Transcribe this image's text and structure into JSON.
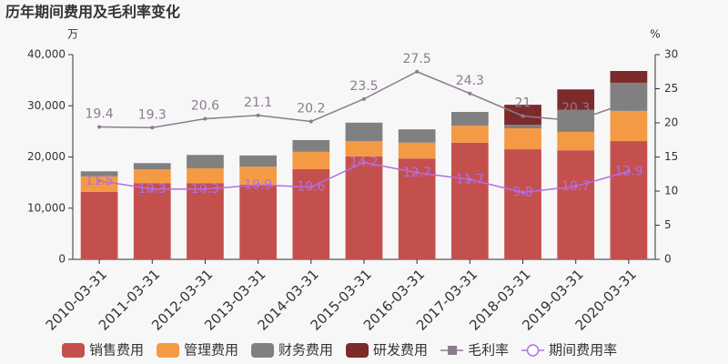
{
  "chart_data": {
    "type": "bar",
    "title": "历年期间费用及毛利率变化",
    "y_unit": "万",
    "y2_unit": "%",
    "categories": [
      "2010-03-31",
      "2011-03-31",
      "2012-03-31",
      "2013-03-31",
      "2014-03-31",
      "2015-03-31",
      "2016-03-31",
      "2017-03-31",
      "2018-03-31",
      "2019-03-31",
      "2020-03-31"
    ],
    "series": [
      {
        "name": "销售费用",
        "color": "#c4504e",
        "values": [
          13200,
          14900,
          14900,
          14600,
          17600,
          20100,
          19700,
          22800,
          21500,
          21300,
          23100
        ]
      },
      {
        "name": "管理费用",
        "color": "#f59a44",
        "values": [
          3000,
          2700,
          2900,
          3500,
          3400,
          3000,
          3100,
          3300,
          4100,
          3600,
          5900
        ]
      },
      {
        "name": "财务费用",
        "color": "#808080",
        "values": [
          1000,
          1200,
          2600,
          2200,
          2300,
          3600,
          2600,
          2700,
          700,
          4300,
          5500
        ]
      },
      {
        "name": "研发费用",
        "color": "#7d2a2a",
        "values": [
          0,
          0,
          0,
          0,
          0,
          0,
          0,
          0,
          3900,
          4000,
          2300
        ]
      },
      {
        "name": "毛利率",
        "color": "#8c7b8f",
        "axis": "y2",
        "values": [
          19.4,
          19.3,
          20.6,
          21.1,
          20.2,
          23.5,
          27.5,
          24.3,
          21,
          20.3,
          23
        ]
      },
      {
        "name": "期间费用率",
        "color": "#b36ee0",
        "axis": "y2",
        "values": [
          11.5,
          10.3,
          10.3,
          10.9,
          10.6,
          14.2,
          12.7,
          11.7,
          9.8,
          10.7,
          12.9
        ]
      }
    ],
    "ylim": [
      0,
      40000
    ],
    "yticks": [
      0,
      {
        "value": 10000,
        "label": "10,000"
      },
      {
        "value": 20000,
        "label": "20,000"
      },
      {
        "value": 30000,
        "label": "30,000"
      },
      {
        "value": 40000,
        "label": "40,000"
      }
    ],
    "y2lim": [
      0,
      30
    ],
    "y2ticks": [
      0,
      5,
      10,
      15,
      20,
      25,
      30
    ]
  }
}
